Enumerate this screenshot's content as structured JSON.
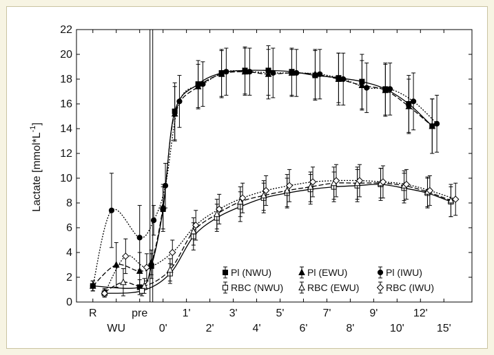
{
  "chart_data": {
    "type": "line",
    "ylabel": "Lactate [mmol*L",
    "ylabel_sup": "-1",
    "ylabel_tail": "]",
    "ylim": [
      0,
      22
    ],
    "yticks": [
      0,
      2,
      4,
      6,
      8,
      10,
      12,
      14,
      16,
      18,
      20,
      22
    ],
    "xtick_rows": [
      {
        "row": 1,
        "labels": [
          {
            "x": 0,
            "text": "R"
          },
          {
            "x": 2,
            "text": "pre"
          },
          {
            "x": 4,
            "text": "1'"
          },
          {
            "x": 6,
            "text": "3'"
          },
          {
            "x": 8,
            "text": "5'"
          },
          {
            "x": 10,
            "text": "7'"
          },
          {
            "x": 12,
            "text": "9'"
          },
          {
            "x": 14,
            "text": "12'"
          }
        ]
      },
      {
        "row": 2,
        "labels": [
          {
            "x": 1,
            "text": "WU"
          },
          {
            "x": 3,
            "text": "0'"
          },
          {
            "x": 5,
            "text": "2'"
          },
          {
            "x": 7,
            "text": "4'"
          },
          {
            "x": 9,
            "text": "6'"
          },
          {
            "x": 11,
            "text": "8'"
          },
          {
            "x": 13,
            "text": "10'"
          },
          {
            "x": 15,
            "text": "15'"
          }
        ]
      }
    ],
    "xlim": [
      -0.7,
      16.2
    ],
    "divider_x": 2.5,
    "series": [
      {
        "name": "Pl (NWU)",
        "marker": "square-filled",
        "line": "solid",
        "color": "#000000",
        "points": [
          [
            0,
            1.3
          ],
          [
            2,
            1.2
          ],
          [
            2.5,
            2.9
          ],
          [
            3,
            7.5
          ],
          [
            3.5,
            15.4
          ],
          [
            4.5,
            17.6
          ],
          [
            5.5,
            18.5
          ],
          [
            6.5,
            18.7
          ],
          [
            7.5,
            18.7
          ],
          [
            8.5,
            18.6
          ],
          [
            9.5,
            18.3
          ],
          [
            10.5,
            18.1
          ],
          [
            11.5,
            17.8
          ],
          [
            12.5,
            17.2
          ],
          [
            13.5,
            16.0
          ],
          [
            14.5,
            14.2
          ]
        ],
        "errors": [
          0.4,
          0.6,
          1.0,
          1.8,
          2.3,
          1.9,
          1.9,
          1.9,
          2.0,
          1.9,
          2.0,
          2.0,
          2.2,
          2.1,
          2.3,
          2.2
        ]
      },
      {
        "name": "Pl (EWU)",
        "marker": "triangle-filled",
        "line": "dashed",
        "color": "#000000",
        "points": [
          [
            0,
            1.3
          ],
          [
            1,
            3.0
          ],
          [
            2,
            2.5
          ],
          [
            2.5,
            3.2
          ],
          [
            3,
            7.7
          ],
          [
            3.5,
            15.2
          ],
          [
            4.5,
            17.4
          ],
          [
            5.5,
            18.4
          ],
          [
            6.5,
            18.6
          ],
          [
            7.5,
            18.4
          ],
          [
            8.5,
            18.5
          ],
          [
            9.5,
            18.4
          ],
          [
            10.5,
            18.0
          ],
          [
            11.5,
            17.5
          ],
          [
            12.5,
            17.1
          ],
          [
            13.5,
            15.8
          ],
          [
            14.5,
            14.2
          ]
        ],
        "errors": [
          0.4,
          1.8,
          1.5,
          1.0,
          1.8,
          2.2,
          1.8,
          1.9,
          1.9,
          2.0,
          1.9,
          2.0,
          2.1,
          2.0,
          2.1,
          2.2,
          2.2
        ]
      },
      {
        "name": "Pl (IWU)",
        "marker": "circle-filled",
        "line": "dotted",
        "color": "#000000",
        "points": [
          [
            0,
            1.3
          ],
          [
            0.8,
            7.4
          ],
          [
            2,
            5.2
          ],
          [
            2.6,
            6.6
          ],
          [
            3.1,
            9.4
          ],
          [
            3.7,
            16.2
          ],
          [
            4.7,
            17.6
          ],
          [
            5.7,
            18.6
          ],
          [
            6.7,
            18.6
          ],
          [
            7.7,
            18.5
          ],
          [
            8.7,
            18.5
          ],
          [
            9.7,
            18.4
          ],
          [
            10.7,
            18.0
          ],
          [
            11.7,
            17.3
          ],
          [
            12.7,
            17.2
          ],
          [
            13.7,
            16.2
          ],
          [
            14.7,
            14.4
          ]
        ],
        "errors": [
          0.4,
          3.0,
          2.6,
          1.2,
          1.8,
          2.1,
          1.8,
          1.9,
          1.9,
          2.0,
          1.9,
          2.0,
          2.1,
          2.0,
          2.1,
          2.3,
          2.3
        ]
      },
      {
        "name": "RBC (NWU)",
        "marker": "square-open",
        "line": "solid",
        "color": "#000000",
        "points": [
          [
            0.5,
            0.7
          ],
          [
            2.1,
            0.9
          ],
          [
            3.3,
            2.3
          ],
          [
            4.3,
            5.3
          ],
          [
            5.3,
            6.8
          ],
          [
            6.3,
            7.7
          ],
          [
            7.3,
            8.4
          ],
          [
            8.3,
            8.8
          ],
          [
            9.3,
            9.1
          ],
          [
            10.3,
            9.3
          ],
          [
            11.3,
            9.4
          ],
          [
            12.3,
            9.5
          ],
          [
            13.3,
            9.2
          ],
          [
            14.3,
            8.8
          ],
          [
            15.3,
            8.1
          ]
        ],
        "errors": [
          0.3,
          0.4,
          0.8,
          1.1,
          1.1,
          1.2,
          1.2,
          1.2,
          1.2,
          1.2,
          1.3,
          1.3,
          1.2,
          1.2,
          1.2
        ]
      },
      {
        "name": "RBC (EWU)",
        "marker": "triangle-open",
        "line": "dashed",
        "color": "#000000",
        "points": [
          [
            0.5,
            0.8
          ],
          [
            1.3,
            1.6
          ],
          [
            2.2,
            1.3
          ],
          [
            3.3,
            2.6
          ],
          [
            4.3,
            5.7
          ],
          [
            5.3,
            7.1
          ],
          [
            6.3,
            8.1
          ],
          [
            7.3,
            8.6
          ],
          [
            8.3,
            9.0
          ],
          [
            9.3,
            9.3
          ],
          [
            10.3,
            9.6
          ],
          [
            11.3,
            9.6
          ],
          [
            12.3,
            9.6
          ],
          [
            13.3,
            9.4
          ],
          [
            14.3,
            8.9
          ],
          [
            15.3,
            8.2
          ]
        ],
        "errors": [
          0.3,
          1.1,
          0.6,
          0.9,
          1.1,
          1.2,
          1.2,
          1.2,
          1.3,
          1.2,
          1.3,
          1.3,
          1.2,
          1.2,
          1.2,
          1.3
        ]
      },
      {
        "name": "RBC (IWU)",
        "marker": "diamond-open",
        "line": "dotted",
        "color": "#000000",
        "points": [
          [
            0.5,
            0.7
          ],
          [
            1.4,
            3.7
          ],
          [
            2.3,
            2.8
          ],
          [
            3.4,
            4.0
          ],
          [
            4.4,
            6.2
          ],
          [
            5.4,
            7.5
          ],
          [
            6.4,
            8.4
          ],
          [
            7.4,
            9.0
          ],
          [
            8.4,
            9.4
          ],
          [
            9.4,
            9.7
          ],
          [
            10.4,
            9.8
          ],
          [
            11.4,
            9.8
          ],
          [
            12.4,
            9.7
          ],
          [
            13.4,
            9.5
          ],
          [
            14.4,
            9.0
          ],
          [
            15.5,
            8.3
          ]
        ],
        "errors": [
          0.3,
          1.4,
          1.1,
          1.0,
          1.2,
          1.2,
          1.2,
          1.2,
          1.3,
          1.2,
          1.3,
          1.3,
          1.3,
          1.2,
          1.2,
          1.3
        ]
      }
    ],
    "legend": {
      "placement": "bottom-right",
      "rows": [
        [
          "Pl (NWU)",
          "Pl (EWU)",
          "Pl (IWU)"
        ],
        [
          "RBC (NWU)",
          "RBC (EWU)",
          "RBC (IWU)"
        ]
      ]
    },
    "grid": false
  }
}
